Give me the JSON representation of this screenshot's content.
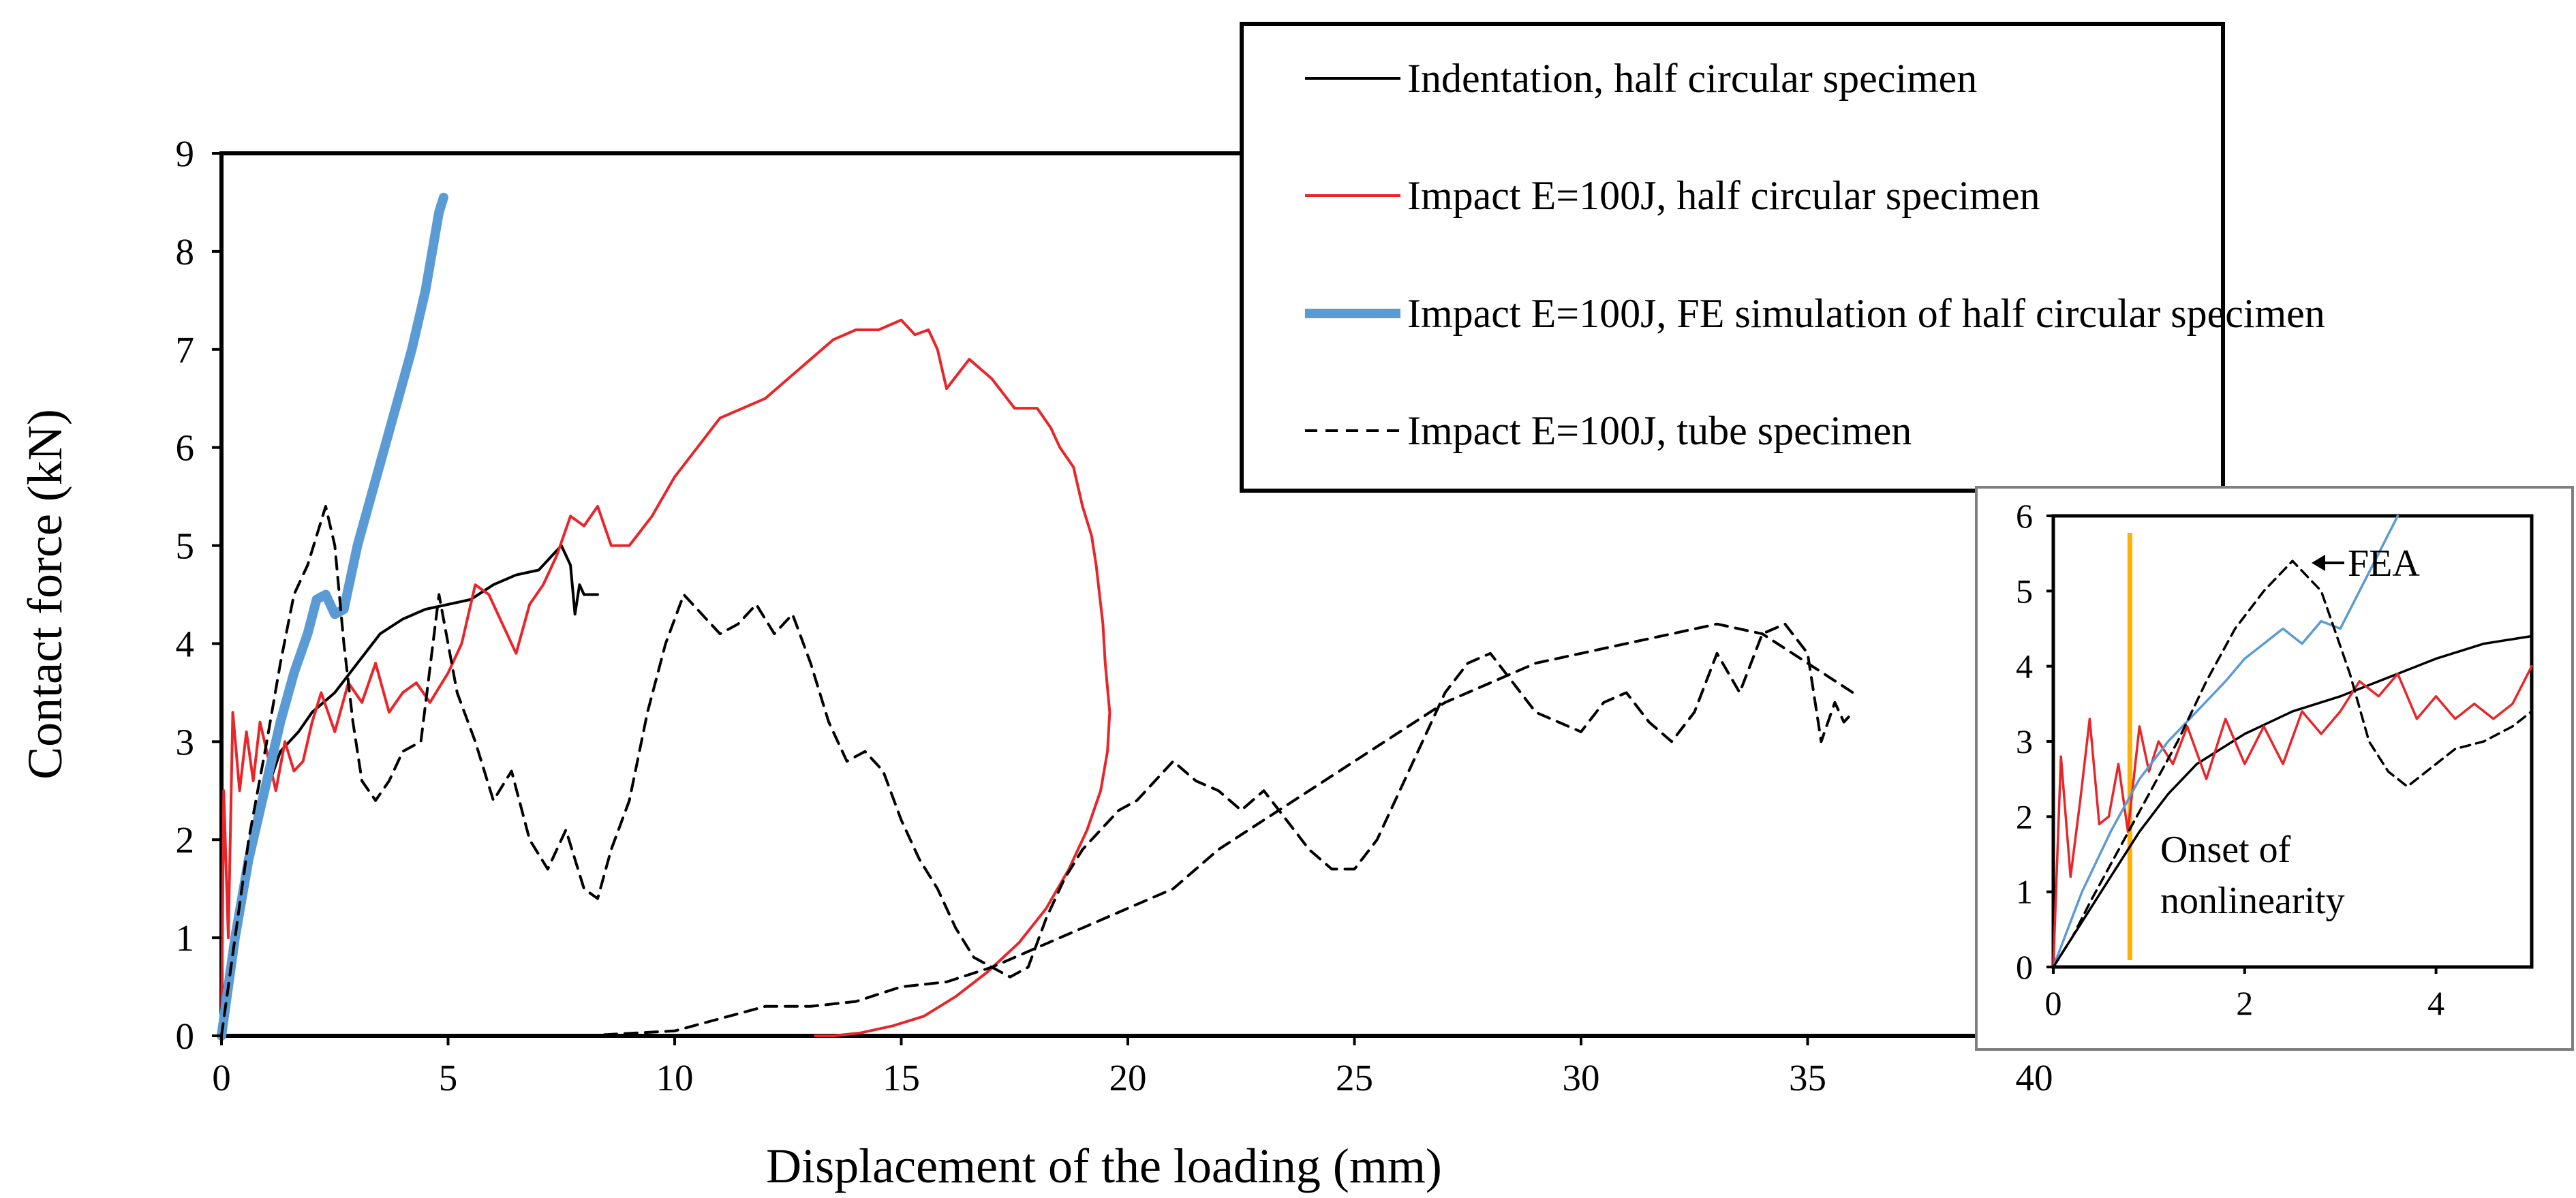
{
  "chart_data": [
    {
      "type": "line",
      "name": "main",
      "title": "",
      "xlabel": "Displacement of the loading (mm)",
      "ylabel": "Contact force (kN)",
      "xlim": [
        0,
        40
      ],
      "ylim": [
        0,
        9
      ],
      "xticks": [
        0,
        5,
        10,
        15,
        20,
        25,
        30,
        35,
        40
      ],
      "yticks": [
        0,
        1,
        2,
        3,
        4,
        5,
        6,
        7,
        8,
        9
      ],
      "grid": false,
      "legend_position": "top-right",
      "series": [
        {
          "name": "Indentation, half circular specimen",
          "color": "#000000",
          "style": "solid",
          "x": [
            0,
            0.3,
            0.6,
            1.0,
            1.3,
            1.7,
            2.0,
            2.5,
            3.0,
            3.5,
            4.0,
            4.5,
            5.0,
            5.5,
            6.0,
            6.5,
            7.0,
            7.5,
            7.7,
            7.8,
            7.9,
            8.0,
            8.3
          ],
          "y": [
            0,
            1.0,
            1.8,
            2.5,
            2.9,
            3.1,
            3.3,
            3.5,
            3.8,
            4.1,
            4.25,
            4.35,
            4.4,
            4.45,
            4.6,
            4.7,
            4.75,
            5.0,
            4.8,
            4.3,
            4.6,
            4.5,
            4.5
          ]
        },
        {
          "name": "Impact E=100J, half circular specimen",
          "color": "#e8262a",
          "style": "solid",
          "x": [
            0,
            0.05,
            0.15,
            0.25,
            0.4,
            0.55,
            0.7,
            0.85,
            1.0,
            1.2,
            1.4,
            1.6,
            1.8,
            2.0,
            2.2,
            2.5,
            2.8,
            3.1,
            3.4,
            3.7,
            4.0,
            4.3,
            4.6,
            5.0,
            5.3,
            5.6,
            5.9,
            6.2,
            6.5,
            6.8,
            7.1,
            7.4,
            7.7,
            8.0,
            8.3,
            8.6,
            9.0,
            9.5,
            10.0,
            10.5,
            11.0,
            11.5,
            12.0,
            12.5,
            13.0,
            13.5,
            14.0,
            14.5,
            15.0,
            15.3,
            15.6,
            15.8,
            16.0,
            16.5,
            17.0,
            17.5,
            18.0,
            18.3,
            18.5,
            18.8,
            19.0,
            19.2,
            19.3,
            19.45,
            19.5,
            19.6,
            19.55,
            19.4,
            19.1,
            18.7,
            18.2,
            17.6,
            16.9,
            16.2,
            15.5,
            14.8,
            14.1,
            13.5,
            13.1
          ],
          "y": [
            0,
            2.5,
            1.0,
            3.3,
            2.5,
            3.1,
            2.6,
            3.2,
            2.9,
            2.5,
            3.0,
            2.7,
            2.8,
            3.2,
            3.5,
            3.1,
            3.6,
            3.4,
            3.8,
            3.3,
            3.5,
            3.6,
            3.4,
            3.7,
            4.0,
            4.6,
            4.5,
            4.2,
            3.9,
            4.4,
            4.6,
            4.9,
            5.3,
            5.2,
            5.4,
            5.0,
            5.0,
            5.3,
            5.7,
            6.0,
            6.3,
            6.4,
            6.5,
            6.7,
            6.9,
            7.1,
            7.2,
            7.2,
            7.3,
            7.15,
            7.2,
            7.0,
            6.6,
            6.9,
            6.7,
            6.4,
            6.4,
            6.2,
            6.0,
            5.8,
            5.4,
            5.1,
            4.8,
            4.2,
            3.8,
            3.3,
            2.9,
            2.5,
            2.1,
            1.7,
            1.3,
            0.95,
            0.65,
            0.4,
            0.2,
            0.1,
            0.03,
            0.0,
            0.0
          ]
        },
        {
          "name": "Impact E=100J, FE simulation of half circular specimen",
          "color": "#5b9bd5",
          "style": "thick",
          "x": [
            0,
            0.3,
            0.6,
            1.0,
            1.3,
            1.6,
            1.9,
            2.1,
            2.3,
            2.5,
            2.7,
            3.0,
            3.3,
            3.6,
            3.9,
            4.2,
            4.5,
            4.8,
            4.9
          ],
          "y": [
            0,
            1.0,
            1.8,
            2.6,
            3.2,
            3.7,
            4.1,
            4.45,
            4.5,
            4.3,
            4.35,
            5.0,
            5.5,
            6.0,
            6.5,
            7.0,
            7.6,
            8.4,
            8.55
          ]
        },
        {
          "name": "Impact E=100J, tube specimen",
          "color": "#000000",
          "style": "dashed",
          "x": [
            0,
            0.3,
            0.6,
            1.0,
            1.3,
            1.6,
            1.9,
            2.1,
            2.3,
            2.5,
            2.7,
            2.9,
            3.1,
            3.4,
            3.7,
            4.0,
            4.4,
            4.8,
            5.2,
            5.6,
            6.0,
            6.4,
            6.8,
            7.2,
            7.6,
            8.0,
            8.3,
            8.6,
            9.0,
            9.4,
            9.8,
            10.2,
            10.6,
            11.0,
            11.4,
            11.8,
            12.2,
            12.6,
            13.0,
            13.4,
            13.8,
            14.2,
            14.6,
            15.0,
            15.4,
            15.8,
            16.2,
            16.6,
            17.0,
            17.4,
            17.8,
            18.2,
            18.6,
            19.0,
            19.4,
            19.8,
            20.2,
            20.6,
            21.0,
            21.5,
            22.0,
            22.5,
            23.0,
            23.5,
            24.0,
            24.5,
            25.0,
            25.5,
            26.0,
            26.5,
            27.0,
            27.5,
            28.0,
            28.5,
            29.0,
            29.5,
            30.0,
            30.5,
            31.0,
            31.5,
            32.0,
            32.5,
            33.0,
            33.5,
            34.0,
            34.5,
            35.0,
            35.3,
            35.6,
            35.8,
            36.0
          ],
          "y": [
            0,
            1.0,
            2.0,
            3.0,
            3.8,
            4.5,
            4.8,
            5.1,
            5.4,
            5.0,
            4.0,
            3.2,
            2.6,
            2.4,
            2.6,
            2.9,
            3.0,
            4.5,
            3.5,
            3.0,
            2.4,
            2.7,
            2.0,
            1.7,
            2.1,
            1.5,
            1.4,
            1.9,
            2.4,
            3.3,
            4.0,
            4.5,
            4.3,
            4.1,
            4.2,
            4.4,
            4.1,
            4.3,
            3.8,
            3.2,
            2.8,
            2.9,
            2.7,
            2.2,
            1.8,
            1.5,
            1.1,
            0.8,
            0.7,
            0.6,
            0.7,
            1.2,
            1.6,
            1.9,
            2.1,
            2.3,
            2.4,
            2.6,
            2.8,
            2.6,
            2.5,
            2.3,
            2.5,
            2.2,
            1.9,
            1.7,
            1.7,
            2.0,
            2.5,
            3.0,
            3.5,
            3.8,
            3.9,
            3.6,
            3.3,
            3.2,
            3.1,
            3.4,
            3.5,
            3.2,
            3.0,
            3.3,
            3.9,
            3.5,
            4.1,
            4.2,
            3.9,
            3.0,
            3.4,
            3.2,
            3.3
          ],
          "x_return": [
            8.0,
            10.0,
            12.0,
            13.0,
            14.0,
            15.0,
            16.0,
            17.0,
            18.0,
            19.0,
            20.0,
            21.0,
            22.0,
            23.0,
            24.0,
            25.0,
            26.0,
            27.0,
            28.0,
            29.0,
            30.0,
            31.0,
            32.0,
            33.0,
            34.0,
            35.0,
            36.0
          ],
          "y_return": [
            0.0,
            0.05,
            0.3,
            0.3,
            0.35,
            0.5,
            0.55,
            0.7,
            0.9,
            1.1,
            1.3,
            1.5,
            1.9,
            2.2,
            2.5,
            2.8,
            3.1,
            3.4,
            3.6,
            3.8,
            3.9,
            4.0,
            4.1,
            4.2,
            4.1,
            3.8,
            3.5
          ]
        }
      ]
    },
    {
      "type": "line",
      "name": "inset",
      "xlim": [
        0,
        5
      ],
      "ylim": [
        0,
        6
      ],
      "xticks": [
        0,
        2,
        4
      ],
      "yticks": [
        0,
        1,
        2,
        3,
        4,
        5,
        6
      ],
      "vertical_marker": {
        "x": 0.8,
        "color": "#ffb000"
      },
      "annotations": [
        {
          "text": "FEA"
        },
        {
          "text": "Onset of"
        },
        {
          "text": "nonlinearity"
        }
      ],
      "series": [
        {
          "name": "Indentation, half circular specimen",
          "color": "#000000",
          "style": "solid",
          "x": [
            0,
            0.3,
            0.6,
            0.9,
            1.2,
            1.5,
            2.0,
            2.5,
            3.0,
            3.5,
            4.0,
            4.5,
            5.0
          ],
          "y": [
            0,
            0.6,
            1.2,
            1.8,
            2.3,
            2.7,
            3.1,
            3.4,
            3.6,
            3.85,
            4.1,
            4.3,
            4.4
          ]
        },
        {
          "name": "Impact E=100J, half circular specimen",
          "color": "#e8262a",
          "style": "solid",
          "x": [
            0,
            0.08,
            0.18,
            0.28,
            0.38,
            0.48,
            0.58,
            0.68,
            0.78,
            0.9,
            1.0,
            1.1,
            1.25,
            1.4,
            1.6,
            1.8,
            2.0,
            2.2,
            2.4,
            2.6,
            2.8,
            3.0,
            3.2,
            3.4,
            3.6,
            3.8,
            4.0,
            4.2,
            4.4,
            4.6,
            4.8,
            5.0
          ],
          "y": [
            0,
            2.8,
            1.2,
            2.2,
            3.3,
            1.9,
            2.0,
            2.7,
            1.8,
            3.2,
            2.6,
            3.0,
            2.7,
            3.2,
            2.5,
            3.3,
            2.7,
            3.2,
            2.7,
            3.4,
            3.1,
            3.4,
            3.8,
            3.6,
            3.9,
            3.3,
            3.6,
            3.3,
            3.5,
            3.3,
            3.5,
            4.0
          ]
        },
        {
          "name": "Impact E=100J, FE simulation of half circular specimen",
          "color": "#5b9bd5",
          "style": "solid",
          "x": [
            0,
            0.3,
            0.6,
            0.9,
            1.2,
            1.5,
            1.8,
            2.0,
            2.2,
            2.4,
            2.6,
            2.8,
            3.0,
            3.2,
            3.4,
            3.6
          ],
          "y": [
            0,
            1.0,
            1.8,
            2.5,
            3.0,
            3.4,
            3.8,
            4.1,
            4.3,
            4.5,
            4.3,
            4.6,
            4.5,
            5.0,
            5.5,
            6.0
          ]
        },
        {
          "name": "Impact E=100J, tube specimen",
          "color": "#000000",
          "style": "dashed",
          "x": [
            0,
            0.2,
            0.4,
            0.7,
            1.0,
            1.3,
            1.6,
            1.9,
            2.2,
            2.5,
            2.8,
            3.1,
            3.3,
            3.5,
            3.7,
            3.9,
            4.2,
            4.5,
            4.8,
            5.0
          ],
          "y": [
            0,
            0.4,
            0.9,
            1.6,
            2.3,
            3.0,
            3.8,
            4.5,
            5.0,
            5.4,
            5.0,
            3.9,
            3.0,
            2.6,
            2.4,
            2.6,
            2.9,
            3.0,
            3.2,
            3.4
          ]
        }
      ]
    }
  ]
}
